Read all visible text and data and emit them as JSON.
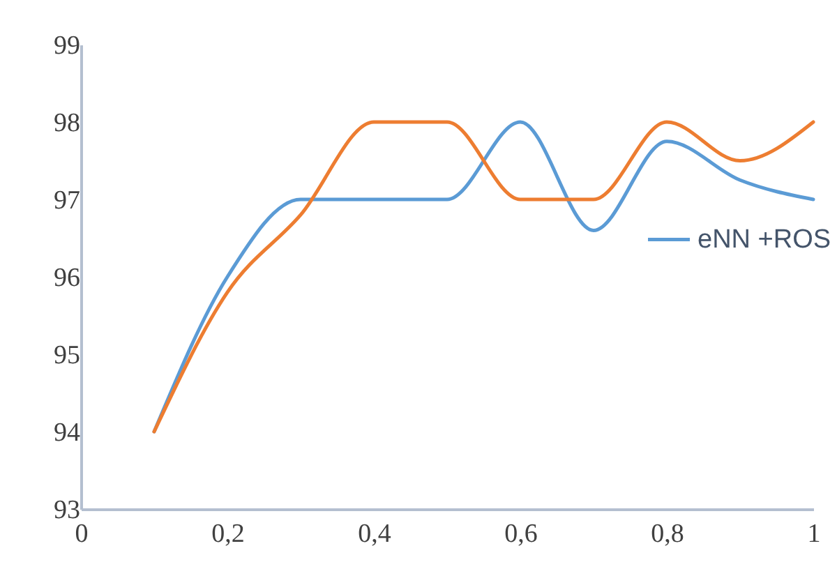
{
  "chart_data": {
    "type": "line",
    "x": [
      0.1,
      0.2,
      0.3,
      0.4,
      0.5,
      0.6,
      0.7,
      0.8,
      0.9,
      1.0
    ],
    "series": [
      {
        "name": "eNN +ROS",
        "color": "#5b9bd5",
        "values": [
          94,
          96,
          97,
          97,
          97,
          98,
          96.6,
          97.75,
          97.25,
          97
        ]
      },
      {
        "color": "#ed7d31",
        "values": [
          94,
          95.8,
          96.8,
          98,
          98,
          97,
          97,
          98,
          97.5,
          98
        ]
      }
    ],
    "xlim": [
      0,
      1
    ],
    "xticks": [
      0,
      {
        "value": 0.2,
        "label": "0,2"
      },
      {
        "value": 0.4,
        "label": "0,4"
      },
      {
        "value": 0.6,
        "label": "0,6"
      },
      {
        "value": 0.8,
        "label": "0,8"
      },
      1
    ],
    "ylim": [
      93,
      99
    ],
    "yticks": [
      93,
      94,
      95,
      96,
      97,
      98,
      99
    ],
    "grid": false,
    "legend": "right",
    "marker": "none",
    "line_style": "solid"
  }
}
